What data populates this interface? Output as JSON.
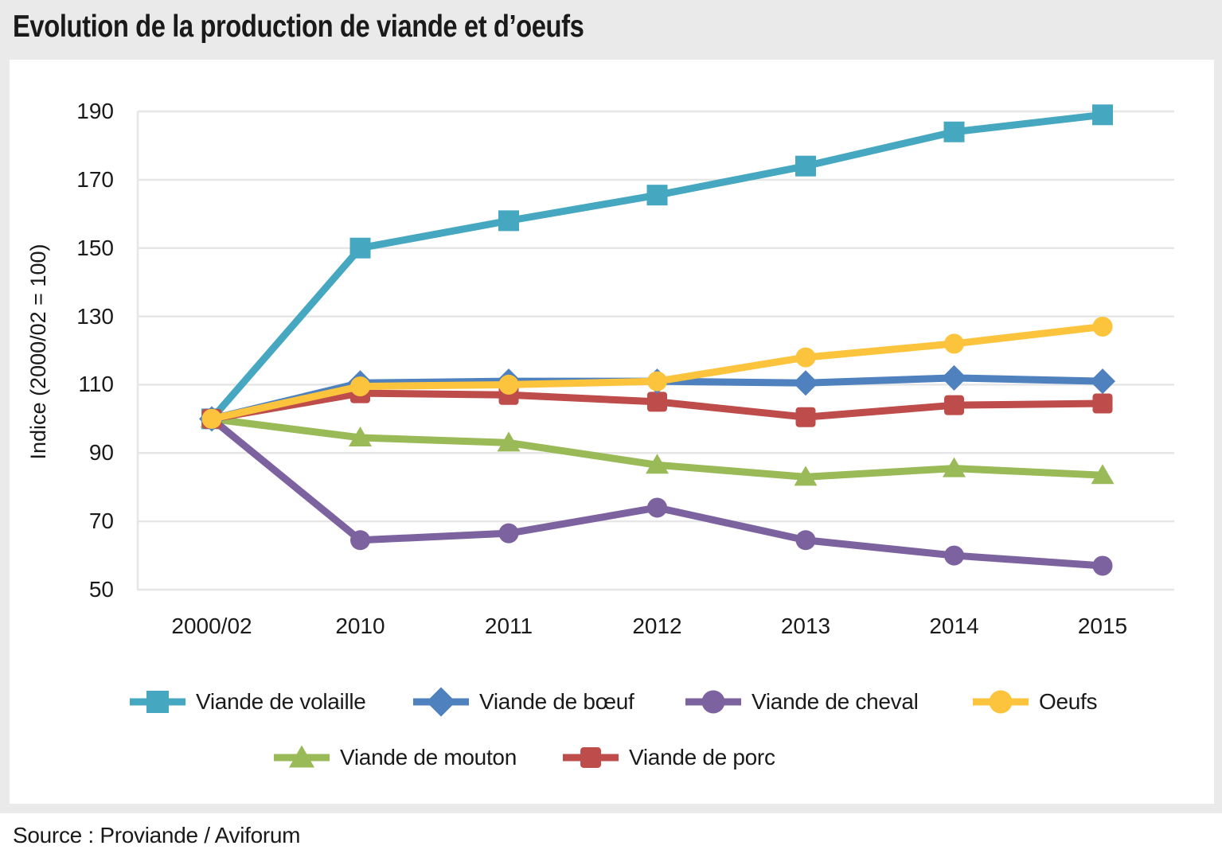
{
  "title": "Evolution de la production de viande et d’oeufs",
  "source": "Source : Proviande / Aviforum",
  "chart_data": {
    "type": "line",
    "title": "Evolution de la production de viande et d’oeufs",
    "categories": [
      "2000/02",
      "2010",
      "2011",
      "2012",
      "2013",
      "2014",
      "2015"
    ],
    "xlabel": "",
    "ylabel": "Indice (2000/02 = 100)",
    "ylim": [
      50,
      190
    ],
    "yticks": [
      190,
      170,
      150,
      130,
      110,
      90,
      70,
      50
    ],
    "grid": true,
    "legend_position": "bottom",
    "colors": {
      "background_frame": "#eaeaea",
      "plot_background": "#ffffff",
      "gridline": "#e6e6e6",
      "text": "#1a1a1a"
    },
    "series": [
      {
        "name": "Viande de volaille",
        "color": "#46a7c0",
        "marker": "square",
        "values": [
          100,
          150,
          158,
          165.5,
          174,
          184,
          189
        ]
      },
      {
        "name": "Viande de bœuf",
        "color": "#4e81bd",
        "marker": "diamond",
        "values": [
          100,
          110.5,
          111,
          111,
          110.5,
          112,
          111
        ]
      },
      {
        "name": "Viande de cheval",
        "color": "#7d62a0",
        "marker": "circle",
        "values": [
          100,
          64.5,
          66.5,
          74,
          64.5,
          60,
          57
        ]
      },
      {
        "name": "Oeufs",
        "color": "#fcc43c",
        "marker": "circle",
        "values": [
          100,
          109.5,
          110,
          111,
          118,
          122,
          127
        ]
      },
      {
        "name": "Viande de mouton",
        "color": "#9aba58",
        "marker": "triangle",
        "values": [
          100,
          94.5,
          93,
          86.5,
          83,
          85.5,
          83.5
        ]
      },
      {
        "name": "Viande de porc",
        "color": "#be4c4a",
        "marker": "square-rounded",
        "values": [
          100,
          107.5,
          107,
          105,
          100.5,
          104,
          104.5
        ]
      }
    ]
  }
}
